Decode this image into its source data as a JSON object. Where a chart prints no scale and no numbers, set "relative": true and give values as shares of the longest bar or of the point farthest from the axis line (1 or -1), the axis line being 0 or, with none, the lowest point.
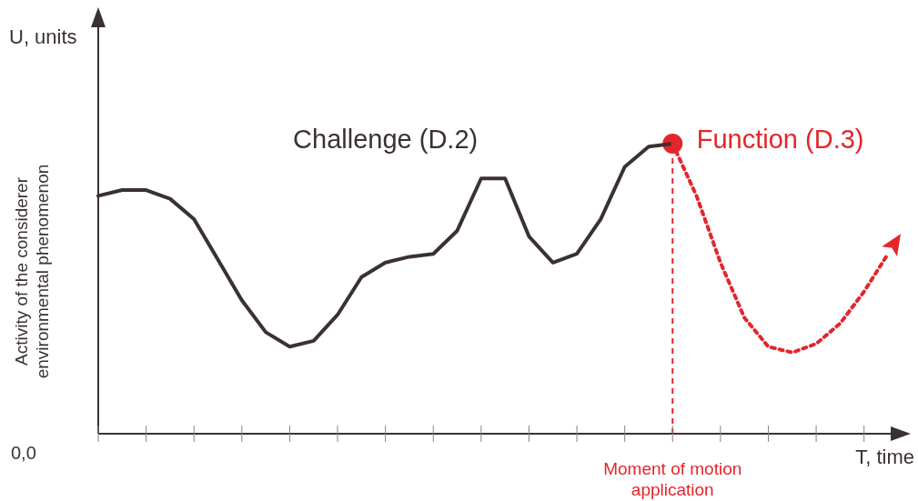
{
  "chart_data": {
    "type": "line",
    "relative": true,
    "ylabel": "Activity of the considerer environmental phenomenon",
    "xlabel": "T, time",
    "annotations": [
      "U, units",
      "0,0",
      {
        "text": "Moment of motion application"
      }
    ],
    "categories": [
      null,
      null,
      null,
      null,
      null,
      null,
      null,
      null,
      null,
      null,
      null,
      null,
      null,
      null,
      null,
      null,
      null,
      null,
      null,
      null,
      null,
      null,
      null,
      null,
      null,
      null,
      null,
      null,
      null,
      null,
      null,
      null,
      null,
      null
    ],
    "series": [
      {
        "name": "Challenge (D.2)",
        "color": "#3a3133",
        "line_style": "solid",
        "values": [
          0.82,
          0.84,
          0.84,
          0.81,
          0.74,
          0.6,
          0.46,
          0.35,
          0.3,
          0.32,
          0.41,
          0.54,
          0.59,
          0.61,
          0.62,
          0.7,
          0.88,
          0.88,
          0.68,
          0.59,
          0.62,
          0.74,
          0.92,
          0.99,
          1,
          null,
          null,
          null,
          null,
          null,
          null,
          null,
          null,
          null
        ]
      },
      {
        "name": "Function (D.3)",
        "color": "#e3262b",
        "line_style": "dotted",
        "values": [
          null,
          null,
          null,
          null,
          null,
          null,
          null,
          null,
          null,
          null,
          null,
          null,
          null,
          null,
          null,
          null,
          null,
          null,
          null,
          null,
          null,
          null,
          null,
          null,
          1,
          0.82,
          0.59,
          0.4,
          0.3,
          0.28,
          0.31,
          0.38,
          0.49,
          0.62
        ]
      }
    ]
  }
}
